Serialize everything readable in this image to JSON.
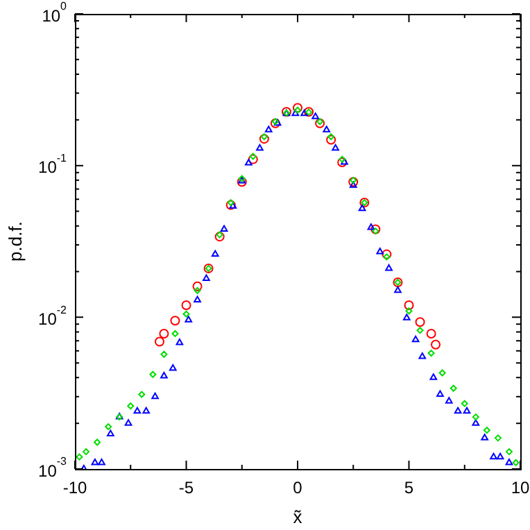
{
  "chart_data": {
    "type": "scatter",
    "xlabel": "x̃",
    "ylabel": "p.d.f.",
    "log": "y",
    "grid": false,
    "legend": false,
    "xlim": [
      -10,
      10
    ],
    "xticks": [
      -10,
      {
        "value": -7.5,
        "label": null
      },
      -5,
      {
        "value": -2.5,
        "label": null
      },
      0,
      {
        "value": 2.5,
        "label": null
      },
      5,
      {
        "value": 7.5,
        "label": null
      },
      10
    ],
    "ylim": [
      0.001,
      1
    ],
    "yticks": [
      {
        "value": 0.001,
        "label": "10$^{-3}$"
      },
      {
        "value": 0.002,
        "label": null
      },
      {
        "value": 0.003,
        "label": null
      },
      {
        "value": 0.004,
        "label": null
      },
      {
        "value": 0.005,
        "label": null
      },
      {
        "value": 0.006,
        "label": null
      },
      {
        "value": 0.007,
        "label": null
      },
      {
        "value": 0.008,
        "label": null
      },
      {
        "value": 0.009,
        "label": null
      },
      {
        "value": 0.01,
        "label": "10$^{-2}$"
      },
      {
        "value": 0.02,
        "label": null
      },
      {
        "value": 0.03,
        "label": null
      },
      {
        "value": 0.04,
        "label": null
      },
      {
        "value": 0.05,
        "label": null
      },
      {
        "value": 0.06,
        "label": null
      },
      {
        "value": 0.07,
        "label": null
      },
      {
        "value": 0.08,
        "label": null
      },
      {
        "value": 0.09,
        "label": null
      },
      {
        "value": 0.1,
        "label": "10$^{-1}$"
      },
      {
        "value": 0.2,
        "label": null
      },
      {
        "value": 0.3,
        "label": null
      },
      {
        "value": 0.4,
        "label": null
      },
      {
        "value": 0.5,
        "label": null
      },
      {
        "value": 0.6,
        "label": null
      },
      {
        "value": 0.7,
        "label": null
      },
      {
        "value": 0.8,
        "label": null
      },
      {
        "value": 0.9,
        "label": null
      },
      {
        "value": 1,
        "label": "10$^{0}$"
      }
    ],
    "series": [
      {
        "color": "#00dd00",
        "marker": "diamond",
        "x": [
          -9.8,
          -9.5,
          -9,
          -8.5,
          -8,
          -7.5,
          -7,
          -6.5,
          -6,
          -5.5,
          -5,
          -4.5,
          -4,
          -3.5,
          -3,
          -2.5,
          -2,
          -1.5,
          -1,
          -0.5,
          0,
          0.5,
          1,
          1.5,
          2,
          2.5,
          3,
          3.5,
          4,
          4.5,
          5,
          5.5,
          6,
          6.5,
          7,
          7.5,
          8,
          8.5,
          9,
          9.5,
          9.8
        ],
        "values": [
          0.0012,
          0.0013,
          0.0015,
          0.0019,
          0.0022,
          0.0026,
          0.0031,
          0.0042,
          0.0057,
          0.0078,
          0.0105,
          0.015,
          0.021,
          0.035,
          0.057,
          0.082,
          0.115,
          0.155,
          0.195,
          0.222,
          0.232,
          0.225,
          0.195,
          0.155,
          0.11,
          0.08,
          0.057,
          0.037,
          0.025,
          0.017,
          0.011,
          0.0082,
          0.0058,
          0.0043,
          0.0034,
          0.0027,
          0.0022,
          0.0018,
          0.0016,
          0.0013,
          0.0011
        ]
      },
      {
        "color": "#0000ff",
        "marker": "triangle",
        "x": [
          -9.6,
          -9.1,
          -8.8,
          -8.4,
          -8,
          -7.6,
          -7.2,
          -6.8,
          -6.4,
          -6,
          -5.6,
          -5.3,
          -4.9,
          -4.5,
          -4.1,
          -3.7,
          -3.3,
          -2.9,
          -2.5,
          -2.2,
          -1.7,
          -1.3,
          -0.9,
          -0.5,
          -0.1,
          0.3,
          0.8,
          1.3,
          1.7,
          2.1,
          2.5,
          2.9,
          3.3,
          3.7,
          4.1,
          4.5,
          4.9,
          5.3,
          5.6,
          6.1,
          6.4,
          6.8,
          7.2,
          7.6,
          8,
          8.4,
          8.8,
          9.1,
          9.5
        ],
        "values": [
          0.001,
          0.0011,
          0.0011,
          0.0017,
          0.0022,
          0.002,
          0.0024,
          0.0024,
          0.003,
          0.0041,
          0.0046,
          0.0068,
          0.0096,
          0.013,
          0.018,
          0.026,
          0.038,
          0.054,
          0.079,
          0.104,
          0.13,
          0.172,
          0.19,
          0.22,
          0.22,
          0.22,
          0.21,
          0.172,
          0.13,
          0.105,
          0.074,
          0.052,
          0.039,
          0.027,
          0.021,
          0.015,
          0.0099,
          0.0071,
          0.0055,
          0.004,
          0.0031,
          0.0028,
          0.0024,
          0.0024,
          0.002,
          0.0016,
          0.0012,
          0.0012,
          0.0011
        ]
      },
      {
        "color": "#ff0000",
        "marker": "circle",
        "x": [
          -6.2,
          -6,
          -5.5,
          -5,
          -4.5,
          -4,
          -3.5,
          -3,
          -2.5,
          -2,
          -1.5,
          -1,
          -0.5,
          0,
          0.5,
          1,
          1.5,
          2,
          2.5,
          3,
          3.5,
          4,
          4.5,
          5,
          5.5,
          6,
          6.2
        ],
        "values": [
          0.0069,
          0.0078,
          0.0095,
          0.012,
          0.016,
          0.021,
          0.034,
          0.055,
          0.078,
          0.11,
          0.15,
          0.19,
          0.226,
          0.24,
          0.226,
          0.19,
          0.148,
          0.105,
          0.078,
          0.057,
          0.038,
          0.026,
          0.017,
          0.012,
          0.0093,
          0.0078,
          0.0066
        ]
      }
    ]
  }
}
